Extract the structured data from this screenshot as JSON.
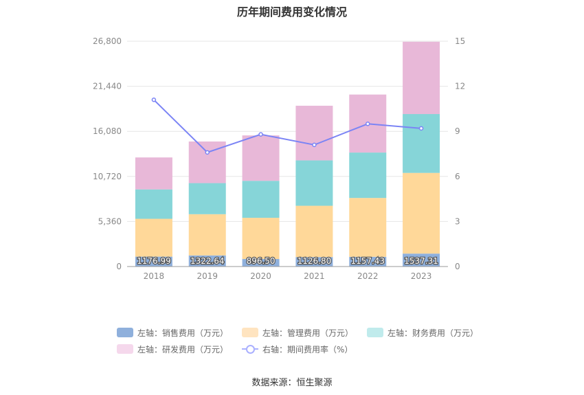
{
  "title": "历年期间费用变化情况",
  "source": "数据来源：恒生聚源",
  "chart_data": {
    "type": "bar",
    "stacked": true,
    "categories": [
      "2018",
      "2019",
      "2020",
      "2021",
      "2022",
      "2023"
    ],
    "y_left": {
      "ylim": [
        0,
        26800
      ],
      "ticks": [
        "0",
        "5,360",
        "10,720",
        "16,080",
        "21,440",
        "26,800"
      ]
    },
    "y_right": {
      "ylim": [
        0,
        15
      ],
      "ticks": [
        "0",
        "3",
        "6",
        "9",
        "12",
        "15"
      ]
    },
    "series": [
      {
        "name": "左轴：销售费用（万元）",
        "axis": "left",
        "type": "bar",
        "color": "#8fb0dc",
        "values": [
          1176.99,
          1322.64,
          896.5,
          1126.8,
          1157.43,
          1537.31
        ],
        "labels": [
          "1176.99",
          "1322.64",
          "896.50",
          "1126.80",
          "1157.43",
          "1537.31"
        ]
      },
      {
        "name": "左轴：管理费用（万元）",
        "axis": "left",
        "type": "bar",
        "color": "#ffd899",
        "values": [
          4500,
          4900,
          4900,
          6100,
          7000,
          9600
        ]
      },
      {
        "name": "左轴：财务费用（万元）",
        "axis": "left",
        "type": "bar",
        "color": "#86d5d8",
        "values": [
          3500,
          3700,
          4400,
          5400,
          5400,
          7000
        ]
      },
      {
        "name": "左轴：研发费用（万元）",
        "axis": "left",
        "type": "bar",
        "color": "#e8b8d8",
        "values": [
          3800,
          4950,
          5400,
          6500,
          6900,
          8600
        ]
      },
      {
        "name": "右轴：期间费用率（%）",
        "axis": "right",
        "type": "line",
        "color": "#7b84f5",
        "values": [
          11.1,
          7.6,
          8.8,
          8.1,
          9.5,
          9.2
        ]
      }
    ],
    "legend_position": "bottom",
    "grid": true
  },
  "legend": {
    "colors": [
      "#8fb0dc",
      "#ffe4c0",
      "#c0ebec",
      "#f5d8ec"
    ]
  }
}
